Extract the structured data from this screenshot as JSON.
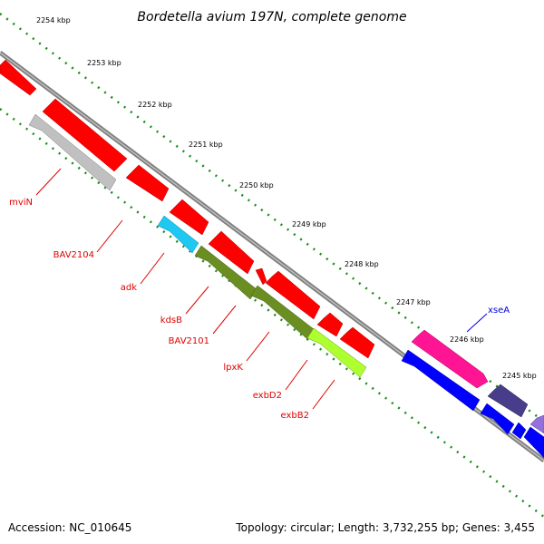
{
  "title": "Bordetella avium 197N, complete genome",
  "footer": {
    "accession": "Accession: NC_010645",
    "summary": "Topology: circular; Length: 3,732,255 bp; Genes: 3,455"
  },
  "colors": {
    "backbone": "#808080",
    "tick": "#1a8c1a",
    "label_red": "#e00000",
    "label_blue": "#0000e0"
  },
  "ticks": [
    {
      "label": "2254 kbp"
    },
    {
      "label": "2253 kbp"
    },
    {
      "label": "2252 kbp"
    },
    {
      "label": "2251 kbp"
    },
    {
      "label": "2250 kbp"
    },
    {
      "label": "2249 kbp"
    },
    {
      "label": "2248 kbp"
    },
    {
      "label": "2247 kbp"
    },
    {
      "label": "2246 kbp"
    },
    {
      "label": "2245 kbp"
    }
  ],
  "genes": [
    {
      "name": "mviN",
      "color": "#c0c0c0",
      "strand": "reverse"
    },
    {
      "name": "BAV2104",
      "color": "#ff0000",
      "strand": "forward"
    },
    {
      "name": "adk",
      "color": "#1ec8f0",
      "strand": "reverse"
    },
    {
      "name": "kdsB",
      "color": "#6b8e23",
      "strand": "reverse"
    },
    {
      "name": "BAV2101",
      "color": "#ff0000",
      "strand": "forward"
    },
    {
      "name": "lpxK",
      "color": "#6b8e23",
      "strand": "reverse"
    },
    {
      "name": "exbD2",
      "color": "#ff0000",
      "strand": "forward"
    },
    {
      "name": "exbB2",
      "color": "#adff2f",
      "strand": "reverse"
    },
    {
      "name": "xseA",
      "color": "#ff1493",
      "strand": "forward"
    }
  ]
}
